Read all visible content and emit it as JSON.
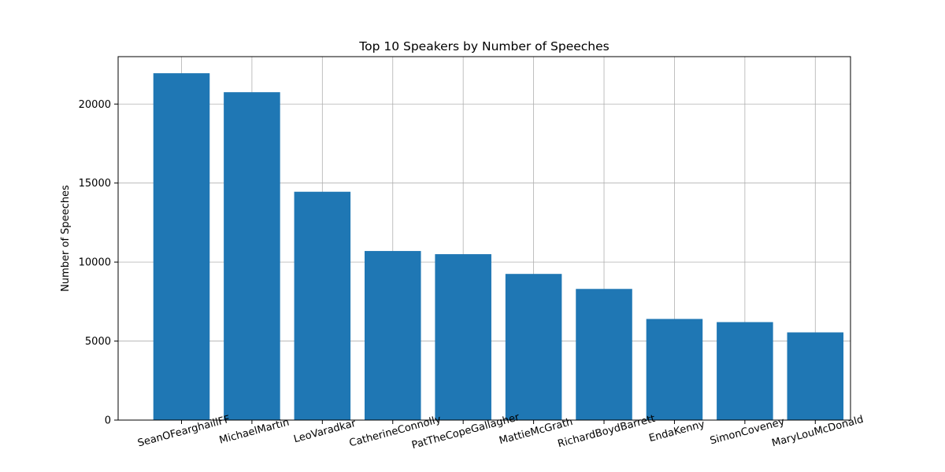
{
  "chart_data": {
    "type": "bar",
    "title": "Top 10 Speakers by Number of Speeches",
    "xlabel": "",
    "ylabel": "Number of Speeches",
    "categories": [
      "SeanOFearghaillFF",
      "MichaelMartin",
      "LeoVaradkar",
      "CatherineConnolly",
      "PatTheCopeGallagher",
      "MattieMcGrath",
      "RichardBoydBarrett",
      "EndaKenny",
      "SimonCoveney",
      "MaryLouMcDonald"
    ],
    "values": [
      21950,
      20750,
      14450,
      10700,
      10500,
      9250,
      8300,
      6400,
      6200,
      5550
    ],
    "ylim": [
      0,
      23000
    ],
    "yticks": [
      0,
      5000,
      10000,
      15000,
      20000
    ],
    "grid": true,
    "color": "#1f77b4"
  }
}
